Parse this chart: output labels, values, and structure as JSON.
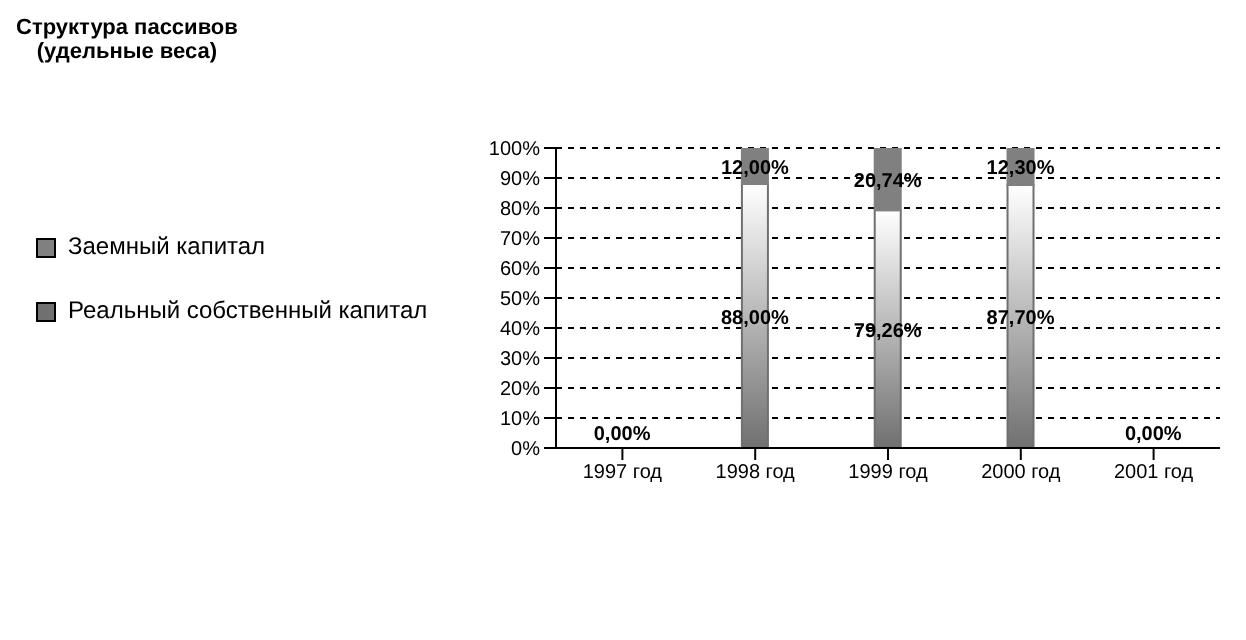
{
  "chart_data": {
    "type": "bar",
    "title": "Структура пассивов",
    "subtitle": "(удельные веса)",
    "stacked": true,
    "categories": [
      "1997 год",
      "1998 год",
      "1999 год",
      "2000 год",
      "2001 год"
    ],
    "series": [
      {
        "name": "Реальный собственный капитал",
        "color": "#707070",
        "values": [
          0,
          88,
          79.26,
          87.7,
          0
        ],
        "value_labels": [
          "0,00%",
          "88,00%",
          "79,26%",
          "87,70%",
          "0,00%"
        ]
      },
      {
        "name": "Заемный капитал",
        "color": "#808080",
        "values": [
          0,
          12,
          20.74,
          12.3,
          0
        ],
        "value_labels": [
          null,
          "12,00%",
          "20,74%",
          "12,30%",
          null
        ]
      }
    ],
    "ylim": [
      0,
      100
    ],
    "yticks": [
      {
        "value": 0,
        "label": "0%"
      },
      {
        "value": 10,
        "label": "10%"
      },
      {
        "value": 20,
        "label": "20%"
      },
      {
        "value": 30,
        "label": "30%"
      },
      {
        "value": 40,
        "label": "40%"
      },
      {
        "value": 50,
        "label": "50%"
      },
      {
        "value": 60,
        "label": "60%"
      },
      {
        "value": 70,
        "label": "70%"
      },
      {
        "value": 80,
        "label": "80%"
      },
      {
        "value": 90,
        "label": "90%"
      },
      {
        "value": 100,
        "label": "100%"
      }
    ],
    "grid": "y",
    "legend": "left"
  }
}
